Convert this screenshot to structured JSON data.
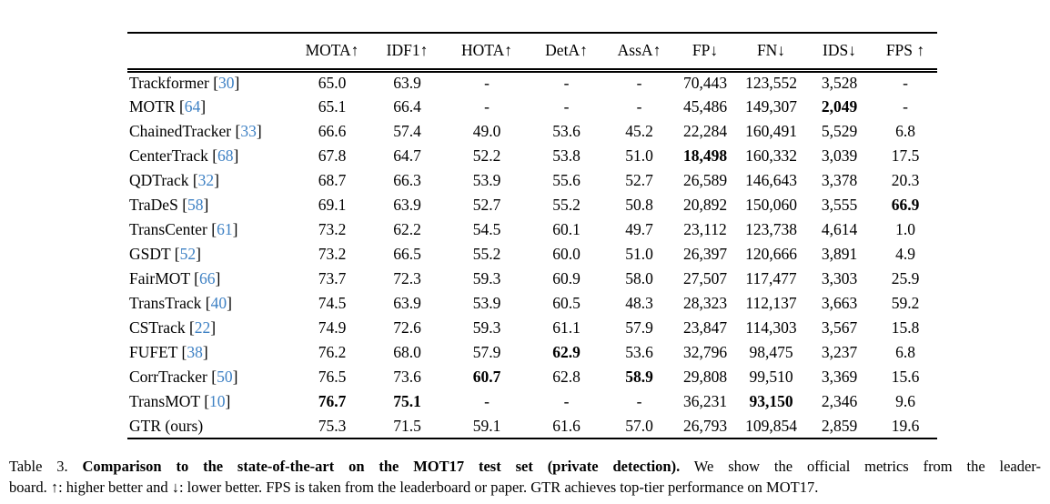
{
  "colors": {
    "cite_blue": "#3e81c4",
    "text": "#000000",
    "background": "#ffffff"
  },
  "table": {
    "columns": [
      "MOTA↑",
      "IDF1↑",
      "HOTA↑",
      "DetA↑",
      "AssA↑",
      "FP↓",
      "FN↓",
      "IDS↓",
      "FPS ↑"
    ],
    "rows": [
      {
        "method": "Trackformer",
        "cite": "30",
        "values": [
          "65.0",
          "63.9",
          "-",
          "-",
          "-",
          "70,443",
          "123,552",
          "3,528",
          "-"
        ],
        "bold": []
      },
      {
        "method": "MOTR",
        "cite": "64",
        "values": [
          "65.1",
          "66.4",
          "-",
          "-",
          "-",
          "45,486",
          "149,307",
          "2,049",
          "-"
        ],
        "bold": [
          7
        ]
      },
      {
        "method": "ChainedTracker",
        "cite": "33",
        "values": [
          "66.6",
          "57.4",
          "49.0",
          "53.6",
          "45.2",
          "22,284",
          "160,491",
          "5,529",
          "6.8"
        ],
        "bold": []
      },
      {
        "method": "CenterTrack",
        "cite": "68",
        "values": [
          "67.8",
          "64.7",
          "52.2",
          "53.8",
          "51.0",
          "18,498",
          "160,332",
          "3,039",
          "17.5"
        ],
        "bold": [
          5
        ]
      },
      {
        "method": "QDTrack",
        "cite": "32",
        "values": [
          "68.7",
          "66.3",
          "53.9",
          "55.6",
          "52.7",
          "26,589",
          "146,643",
          "3,378",
          "20.3"
        ],
        "bold": []
      },
      {
        "method": "TraDeS",
        "cite": "58",
        "values": [
          "69.1",
          "63.9",
          "52.7",
          "55.2",
          "50.8",
          "20,892",
          "150,060",
          "3,555",
          "66.9"
        ],
        "bold": [
          8
        ]
      },
      {
        "method": "TransCenter",
        "cite": "61",
        "values": [
          "73.2",
          "62.2",
          "54.5",
          "60.1",
          "49.7",
          "23,112",
          "123,738",
          "4,614",
          "1.0"
        ],
        "bold": []
      },
      {
        "method": "GSDT",
        "cite": "52",
        "values": [
          "73.2",
          "66.5",
          "55.2",
          "60.0",
          "51.0",
          "26,397",
          "120,666",
          "3,891",
          "4.9"
        ],
        "bold": []
      },
      {
        "method": "FairMOT",
        "cite": "66",
        "values": [
          "73.7",
          "72.3",
          "59.3",
          "60.9",
          "58.0",
          "27,507",
          "117,477",
          "3,303",
          "25.9"
        ],
        "bold": []
      },
      {
        "method": "TransTrack",
        "cite": "40",
        "values": [
          "74.5",
          "63.9",
          "53.9",
          "60.5",
          "48.3",
          "28,323",
          "112,137",
          "3,663",
          "59.2"
        ],
        "bold": []
      },
      {
        "method": "CSTrack",
        "cite": "22",
        "values": [
          "74.9",
          "72.6",
          "59.3",
          "61.1",
          "57.9",
          "23,847",
          "114,303",
          "3,567",
          "15.8"
        ],
        "bold": []
      },
      {
        "method": "FUFET",
        "cite": "38",
        "values": [
          "76.2",
          "68.0",
          "57.9",
          "62.9",
          "53.6",
          "32,796",
          "98,475",
          "3,237",
          "6.8"
        ],
        "bold": [
          3
        ]
      },
      {
        "method": "CorrTracker",
        "cite": "50",
        "values": [
          "76.5",
          "73.6",
          "60.7",
          "62.8",
          "58.9",
          "29,808",
          "99,510",
          "3,369",
          "15.6"
        ],
        "bold": [
          2,
          4
        ]
      },
      {
        "method": "TransMOT",
        "cite": "10",
        "values": [
          "76.7",
          "75.1",
          "-",
          "-",
          "-",
          "36,231",
          "93,150",
          "2,346",
          "9.6"
        ],
        "bold": [
          0,
          1,
          6
        ]
      },
      {
        "method": "GTR (ours)",
        "cite": null,
        "values": [
          "75.3",
          "71.5",
          "59.1",
          "61.6",
          "57.0",
          "26,793",
          "109,854",
          "2,859",
          "19.6"
        ],
        "bold": []
      }
    ]
  },
  "caption": {
    "label": "Table 3. ",
    "bold": "Comparison to the state-of-the-art on the MOT17 test set (private detection).",
    "line1_rest": " We show the official metrics from the leader-",
    "line2": "board. ↑: higher better and ↓: lower better. FPS is taken from the leaderboard or paper. GTR achieves top-tier performance on MOT17."
  }
}
